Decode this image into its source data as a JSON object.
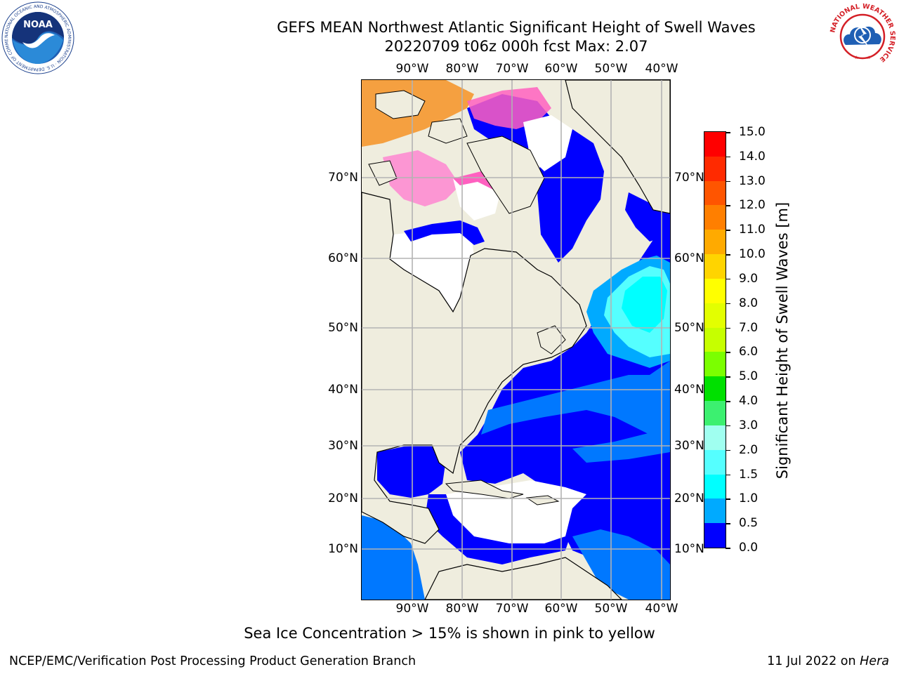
{
  "header": {
    "title": "GEFS MEAN Northwest Atlantic Significant Height of Swell Waves",
    "subtitle": "20220709 t06z 000h fcst   Max: 2.07"
  },
  "map": {
    "lon_ticks": [
      "90°W",
      "80°W",
      "70°W",
      "60°W",
      "50°W",
      "40°W"
    ],
    "lat_ticks": [
      "70°N",
      "60°N",
      "50°N",
      "40°N",
      "30°N",
      "20°N",
      "10°N"
    ],
    "land_color": "#efedde",
    "gridline_color": "#b3b3b3"
  },
  "colorbar": {
    "label": "Significant Height of Swell Waves [m]",
    "ticks": [
      "15.0",
      "14.0",
      "13.0",
      "12.0",
      "11.0",
      "10.0",
      "9.0",
      "8.0",
      "7.0",
      "6.0",
      "5.0",
      "4.0",
      "3.0",
      "2.0",
      "1.5",
      "1.0",
      "0.5",
      "0.0"
    ],
    "colors": [
      "#ff0000",
      "#ff2a00",
      "#ff5500",
      "#ff7f00",
      "#ffaa00",
      "#ffd400",
      "#ffff00",
      "#e3ff00",
      "#c6ff00",
      "#7bff00",
      "#00e000",
      "#3cf070",
      "#a0fff0",
      "#55ffff",
      "#00ffff",
      "#00aaff",
      "#0000ff"
    ]
  },
  "footnote": "Sea Ice Concentration > 15% is shown in pink to yellow",
  "footer": {
    "left": "NCEP/EMC/Verification Post Processing Product Generation Branch",
    "right_date": "11 Jul 2022 on ",
    "right_host": "Hera"
  },
  "logos": {
    "noaa_text": "NOAA",
    "noaa_ring": "NATIONAL OCEANIC AND ATMOSPHERIC ADMINISTRATION · U.S. DEPARTMENT OF COMMERCE",
    "nws_ring": "NATIONAL WEATHER SERVICE"
  }
}
